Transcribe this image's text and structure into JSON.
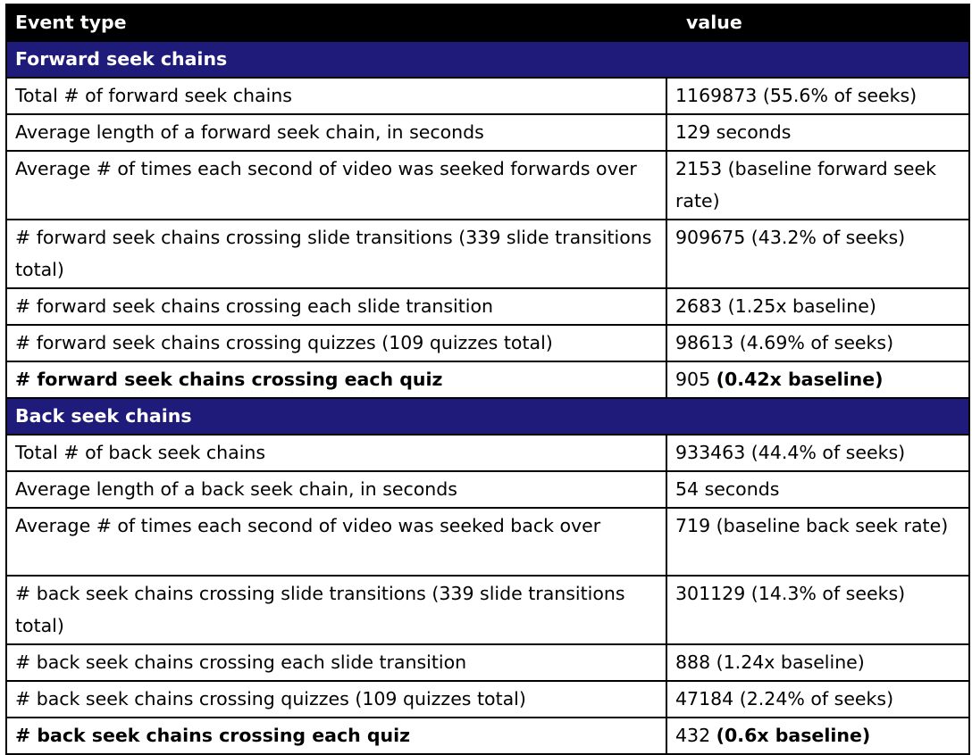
{
  "header": {
    "col1": "Event type",
    "col2": "value"
  },
  "sections": [
    {
      "title": "Forward seek chains",
      "rows": [
        {
          "label": "Total # of forward seek chains",
          "value": "1169873 (55.6% of seeks)"
        },
        {
          "label": "Average length of a forward seek chain, in seconds",
          "value": "129 seconds"
        },
        {
          "label": "Average # of times each second of video was seeked forwards over",
          "value": "2153 (baseline forward seek rate)"
        },
        {
          "label": "# forward seek chains crossing slide transitions (339 slide transitions total)",
          "value": "909675 (43.2% of seeks)"
        },
        {
          "label": "# forward seek chains crossing each slide transition",
          "value": "2683 (1.25x baseline)"
        },
        {
          "label": "# forward seek chains crossing quizzes (109 quizzes total)",
          "value": "98613 (4.69% of seeks)"
        },
        {
          "label": "# forward seek chains crossing each quiz",
          "value_num": "905",
          "value_note": "(0.42x baseline)"
        }
      ]
    },
    {
      "title": "Back seek chains",
      "rows": [
        {
          "label": "Total # of back seek chains",
          "value": "933463 (44.4% of seeks)"
        },
        {
          "label": "Average length of a back seek chain, in seconds",
          "value": "54 seconds"
        },
        {
          "label": "Average # of times each second of video was seeked back over",
          "value": "719 (baseline back seek rate)"
        },
        {
          "label": "# back seek chains crossing slide transitions (339 slide transitions total)",
          "value": "301129 (14.3% of seeks)"
        },
        {
          "label": "# back seek chains crossing each slide transition",
          "value": "888 (1.24x baseline)"
        },
        {
          "label": "# back seek chains crossing quizzes (109 quizzes total)",
          "value": "47184 (2.24% of seeks)"
        },
        {
          "label": "# back seek chains crossing each quiz",
          "value_num": "432",
          "value_note": "(0.6x baseline)"
        }
      ]
    }
  ],
  "colors": {
    "header_bg": "#000000",
    "section_bg": "#1f1b7a",
    "text": "#000000"
  }
}
